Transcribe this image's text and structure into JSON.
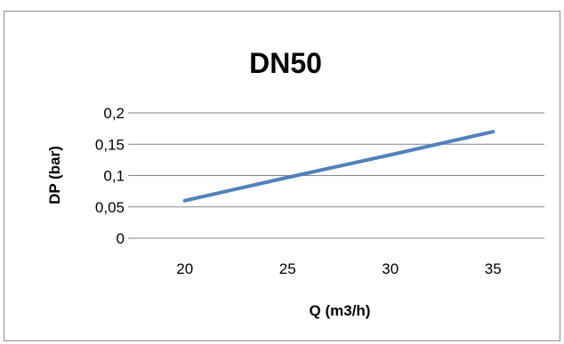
{
  "chart_data": {
    "type": "line",
    "title": "DN50",
    "xlabel": "Q (m3/h)",
    "ylabel": "DP (bar)",
    "categories": [
      "20",
      "25",
      "30",
      "35"
    ],
    "y_ticks": [
      "0",
      "0,05",
      "0,1",
      "0,15",
      "0,2"
    ],
    "ylim": [
      0,
      0.2
    ],
    "grid": true,
    "legend": "none",
    "series": [
      {
        "values": [
          0.06,
          0.097,
          0.133,
          0.17
        ],
        "color": "#4f81bd"
      }
    ],
    "colors": {
      "line": "#4f81bd",
      "grid": "#868686",
      "frame": "#8c8c8c"
    }
  }
}
